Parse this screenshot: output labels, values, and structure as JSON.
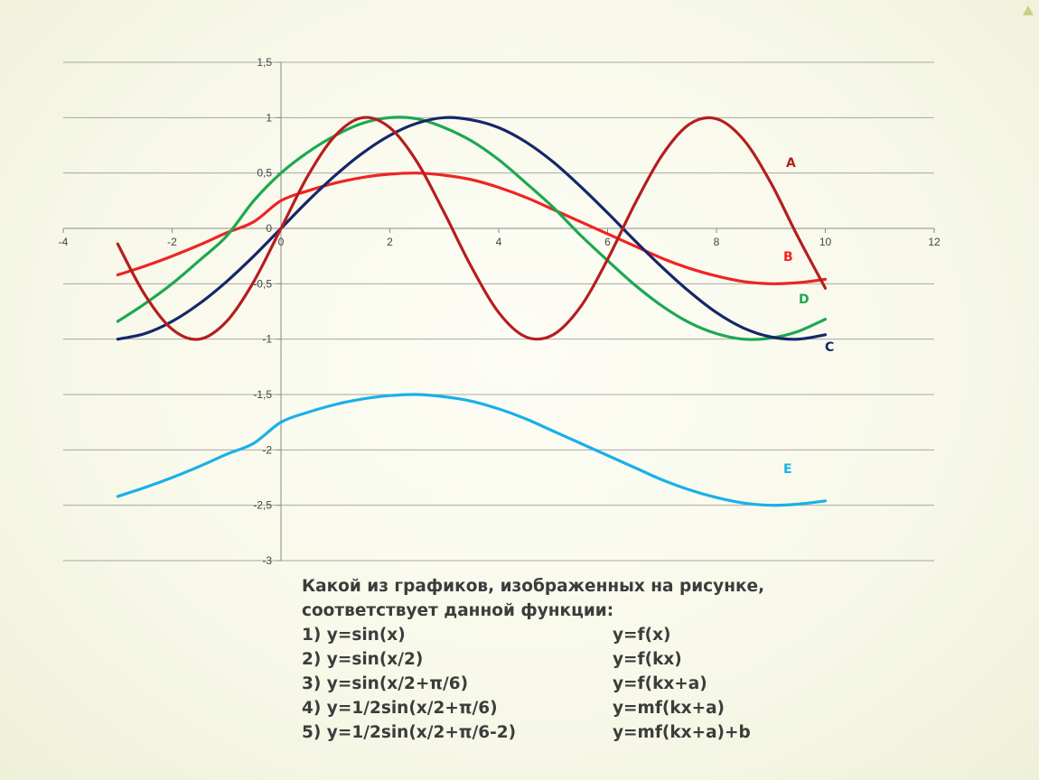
{
  "chart_data": {
    "type": "line",
    "xlim": [
      -4,
      12
    ],
    "ylim": [
      -3,
      1.5
    ],
    "x_ticks": [
      -4,
      -2,
      0,
      2,
      4,
      6,
      8,
      10,
      12
    ],
    "x_tick_labels": [
      "-4",
      "-2",
      "0",
      "2",
      "4",
      "6",
      "8",
      "10",
      "12"
    ],
    "y_ticks": [
      1.5,
      1,
      0.5,
      0,
      -0.5,
      -1,
      -1.5,
      -2,
      -2.5,
      -3
    ],
    "y_tick_labels": [
      "1,5",
      "1",
      "0,5",
      "0",
      "-0,5",
      "-1",
      "-1,5",
      "-2",
      "-2,5",
      "-3"
    ],
    "grid": "horizontal",
    "x_range_plotted": [
      -3,
      10
    ],
    "series": [
      {
        "name": "A",
        "color": "#b51e1e",
        "x": [
          -3,
          -2.5,
          -2,
          -1.5,
          -1,
          -0.5,
          0,
          0.5,
          1,
          1.5,
          2,
          2.5,
          3,
          3.5,
          4,
          4.5,
          5,
          5.5,
          6,
          6.5,
          7,
          7.5,
          8,
          8.5,
          9,
          9.5,
          10
        ],
        "y": [
          -0.14,
          -0.6,
          -0.91,
          -1.0,
          -0.84,
          -0.48,
          0.0,
          0.48,
          0.84,
          1.0,
          0.91,
          0.6,
          0.14,
          -0.35,
          -0.76,
          -0.98,
          -0.96,
          -0.71,
          -0.28,
          0.22,
          0.66,
          0.94,
          0.99,
          0.8,
          0.41,
          -0.08,
          -0.54
        ]
      },
      {
        "name": "B",
        "color": "#ee2424",
        "x": [
          -3,
          -2.5,
          -2,
          -1.5,
          -1,
          -0.5,
          0,
          0.5,
          1,
          1.5,
          2,
          2.5,
          3,
          3.5,
          4,
          4.5,
          5,
          5.5,
          6,
          6.5,
          7,
          7.5,
          8,
          8.5,
          9,
          9.5,
          10
        ],
        "y": [
          -0.42,
          -0.34,
          -0.25,
          -0.15,
          -0.04,
          0.06,
          0.25,
          0.34,
          0.41,
          0.46,
          0.49,
          0.5,
          0.48,
          0.44,
          0.37,
          0.28,
          0.17,
          0.06,
          -0.05,
          -0.16,
          -0.27,
          -0.36,
          -0.43,
          -0.48,
          -0.5,
          -0.49,
          -0.46
        ]
      },
      {
        "name": "C",
        "color": "#16266a",
        "x": [
          -3,
          -2.5,
          -2,
          -1.5,
          -1,
          -0.5,
          0,
          0.5,
          1,
          1.5,
          2,
          2.5,
          3,
          3.5,
          4,
          4.5,
          5,
          5.5,
          6,
          6.5,
          7,
          7.5,
          8,
          8.5,
          9,
          9.5,
          10
        ],
        "y": [
          -1.0,
          -0.95,
          -0.84,
          -0.68,
          -0.48,
          -0.25,
          0.0,
          0.25,
          0.48,
          0.68,
          0.84,
          0.95,
          1.0,
          0.98,
          0.91,
          0.78,
          0.6,
          0.38,
          0.14,
          -0.11,
          -0.35,
          -0.57,
          -0.76,
          -0.9,
          -0.98,
          -1.0,
          -0.96
        ]
      },
      {
        "name": "D",
        "color": "#1ca852",
        "x": [
          -3,
          -2.5,
          -2,
          -1.5,
          -1,
          -0.5,
          0,
          0.5,
          1,
          1.5,
          2,
          2.5,
          3,
          3.5,
          4,
          4.5,
          5,
          5.5,
          6,
          6.5,
          7,
          7.5,
          8,
          8.5,
          9,
          9.5,
          10
        ],
        "y": [
          -0.84,
          -0.68,
          -0.5,
          -0.29,
          -0.07,
          0.25,
          0.5,
          0.69,
          0.84,
          0.95,
          1.0,
          0.99,
          0.91,
          0.79,
          0.62,
          0.41,
          0.19,
          -0.06,
          -0.29,
          -0.51,
          -0.7,
          -0.85,
          -0.95,
          -1.0,
          -0.99,
          -0.93,
          -0.82
        ]
      },
      {
        "name": "E",
        "color": "#1ab0ea",
        "x": [
          -3,
          -2.5,
          -2,
          -1.5,
          -1,
          -0.5,
          0,
          0.5,
          1,
          1.5,
          2,
          2.5,
          3,
          3.5,
          4,
          4.5,
          5,
          5.5,
          6,
          6.5,
          7,
          7.5,
          8,
          8.5,
          9,
          9.5,
          10
        ],
        "y": [
          -2.42,
          -2.34,
          -2.25,
          -2.15,
          -2.04,
          -1.94,
          -1.75,
          -1.66,
          -1.59,
          -1.54,
          -1.51,
          -1.5,
          -1.52,
          -1.56,
          -1.63,
          -1.72,
          -1.83,
          -1.94,
          -2.05,
          -2.16,
          -2.27,
          -2.36,
          -2.43,
          -2.48,
          -2.5,
          -2.49,
          -2.46
        ]
      }
    ]
  },
  "question": {
    "line1": "Какой из графиков, изображенных на рисунке,",
    "line2": "соответствует данной функции:",
    "items": [
      {
        "left": "1) y=sin(x)",
        "right": "y=f(x)"
      },
      {
        "left": "2) y=sin(x/2)",
        "right": "y=f(kx)"
      },
      {
        "left": "3) y=sin(x/2+π/6)",
        "right": "y=f(kx+a)"
      },
      {
        "left": "4) y=1/2sin(x/2+π/6)",
        "right": "y=mf(kx+a)"
      },
      {
        "left": "5) y=1/2sin(x/2+π/6-2)",
        "right": "y=mf(kx+a)+b"
      }
    ]
  }
}
